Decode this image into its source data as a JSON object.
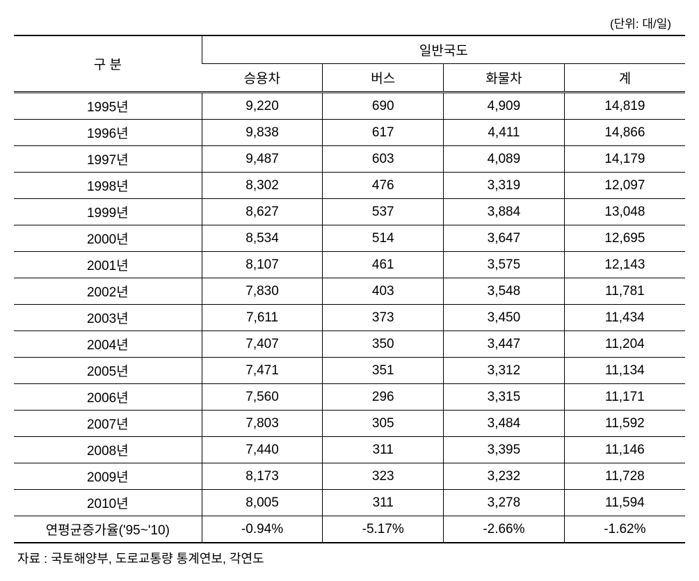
{
  "unit_label": "(단위: 대/일)",
  "header": {
    "category": "구 분",
    "main_group": "일반국도",
    "columns": [
      "승용차",
      "버스",
      "화물차",
      "계"
    ]
  },
  "rows": [
    {
      "year": "1995년",
      "car": "9,220",
      "bus": "690",
      "truck": "4,909",
      "total": "14,819"
    },
    {
      "year": "1996년",
      "car": "9,838",
      "bus": "617",
      "truck": "4,411",
      "total": "14,866"
    },
    {
      "year": "1997년",
      "car": "9,487",
      "bus": "603",
      "truck": "4,089",
      "total": "14,179"
    },
    {
      "year": "1998년",
      "car": "8,302",
      "bus": "476",
      "truck": "3,319",
      "total": "12,097"
    },
    {
      "year": "1999년",
      "car": "8,627",
      "bus": "537",
      "truck": "3,884",
      "total": "13,048"
    },
    {
      "year": "2000년",
      "car": "8,534",
      "bus": "514",
      "truck": "3,647",
      "total": "12,695"
    },
    {
      "year": "2001년",
      "car": "8,107",
      "bus": "461",
      "truck": "3,575",
      "total": "12,143"
    },
    {
      "year": "2002년",
      "car": "7,830",
      "bus": "403",
      "truck": "3,548",
      "total": "11,781"
    },
    {
      "year": "2003년",
      "car": "7,611",
      "bus": "373",
      "truck": "3,450",
      "total": "11,434"
    },
    {
      "year": "2004년",
      "car": "7,407",
      "bus": "350",
      "truck": "3,447",
      "total": "11,204"
    },
    {
      "year": "2005년",
      "car": "7,471",
      "bus": "351",
      "truck": "3,312",
      "total": "11,134"
    },
    {
      "year": "2006년",
      "car": "7,560",
      "bus": "296",
      "truck": "3,315",
      "total": "11,171"
    },
    {
      "year": "2007년",
      "car": "7,803",
      "bus": "305",
      "truck": "3,484",
      "total": "11,592"
    },
    {
      "year": "2008년",
      "car": "7,440",
      "bus": "311",
      "truck": "3,395",
      "total": "11,146"
    },
    {
      "year": "2009년",
      "car": "8,173",
      "bus": "323",
      "truck": "3,232",
      "total": "11,728"
    },
    {
      "year": "2010년",
      "car": "8,005",
      "bus": "311",
      "truck": "3,278",
      "total": "11,594"
    },
    {
      "year": "연평균증가율('95~'10)",
      "car": "-0.94%",
      "bus": "-5.17%",
      "truck": "-2.66%",
      "total": "-1.62%"
    }
  ],
  "source": "자료 : 국토해양부, 도로교통량 통계연보, 각연도",
  "styling": {
    "font_family": "Malgun Gothic",
    "body_font_size": 19,
    "unit_font_size": 17,
    "source_font_size": 18,
    "text_color": "#000000",
    "background_color": "#ffffff",
    "border_color": "#000000",
    "thick_border_width": 2,
    "thin_border_width": 1,
    "column_widths": [
      "28%",
      "18%",
      "18%",
      "18%",
      "18%"
    ]
  }
}
